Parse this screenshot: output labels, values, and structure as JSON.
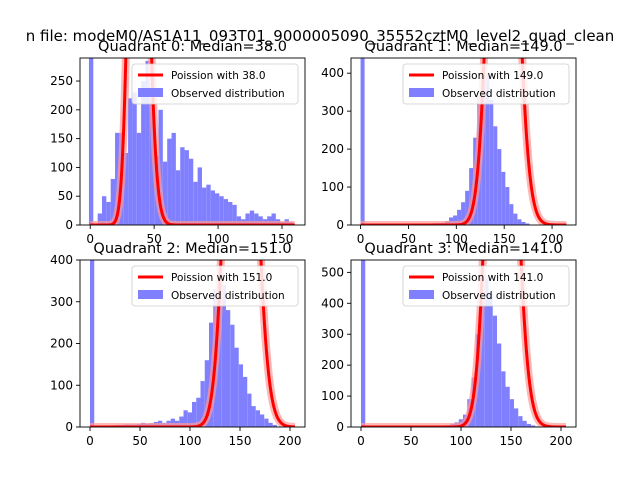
{
  "suptitle": "n file: modeM0/AS1A11_093T01_9000005090_35552cztM0_level2_quad_clean",
  "colors": {
    "fit": "#ff0000",
    "fit_halo": "#ff9999",
    "hist": "#8080ff"
  },
  "chart_data": [
    {
      "type": "bar+line",
      "title": "Quadrant 0: Median=38.0",
      "median": 38.0,
      "xlim": [
        -8,
        168
      ],
      "ylim": [
        0,
        290
      ],
      "xticks": [
        0,
        50,
        100,
        150
      ],
      "yticks": [
        0,
        50,
        100,
        150,
        200,
        250
      ],
      "legend": [
        "Poission with 38.0",
        "Observed distribution"
      ],
      "hist": {
        "start": -1,
        "width": 3.4,
        "values": [
          290,
          0,
          20,
          50,
          40,
          80,
          160,
          160,
          125,
          220,
          230,
          160,
          250,
          285,
          240,
          120,
          200,
          110,
          150,
          160,
          95,
          135,
          130,
          115,
          75,
          100,
          65,
          70,
          60,
          55,
          50,
          45,
          40,
          35,
          15,
          10,
          20,
          25,
          20,
          15,
          10,
          15,
          20,
          10,
          5,
          10,
          5
        ]
      },
      "fit": {
        "mu": 38.0,
        "scale": 17150,
        "x_max": 160
      }
    },
    {
      "type": "bar+line",
      "title": "Quadrant 1: Median=149.0",
      "median": 149.0,
      "xlim": [
        -10,
        225
      ],
      "ylim": [
        0,
        440
      ],
      "xticks": [
        0,
        50,
        100,
        150,
        200
      ],
      "yticks": [
        0,
        100,
        200,
        300,
        400
      ],
      "legend": [
        "Poission with 149.0",
        "Observed distribution"
      ],
      "hist": {
        "start": 0,
        "width": 4.2,
        "values": [
          440,
          0,
          0,
          0,
          0,
          0,
          0,
          0,
          0,
          0,
          0,
          0,
          2,
          2,
          3,
          3,
          3,
          4,
          5,
          5,
          6,
          10,
          20,
          25,
          40,
          60,
          90,
          150,
          230,
          340,
          410,
          400,
          330,
          260,
          200,
          140,
          100,
          55,
          30,
          15,
          8,
          4
        ]
      },
      "fit": {
        "mu": 149.0,
        "scale": 51100,
        "x_max": 215
      }
    },
    {
      "type": "bar+line",
      "title": "Quadrant 2: Median=151.0",
      "median": 151.0,
      "xlim": [
        -10,
        215
      ],
      "ylim": [
        0,
        400
      ],
      "xticks": [
        0,
        50,
        100,
        150,
        200
      ],
      "yticks": [
        0,
        100,
        200,
        300,
        400
      ],
      "legend": [
        "Poission with 151.0",
        "Observed distribution"
      ],
      "hist": {
        "start": 0,
        "width": 4.25,
        "values": [
          400,
          0,
          0,
          3,
          3,
          4,
          5,
          5,
          6,
          6,
          6,
          7,
          10,
          8,
          9,
          12,
          15,
          10,
          15,
          20,
          15,
          25,
          40,
          35,
          60,
          70,
          110,
          160,
          250,
          330,
          380,
          340,
          280,
          245,
          190,
          150,
          120,
          80,
          50,
          40,
          30,
          20,
          10,
          5
        ]
      },
      "fit": {
        "mu": 151.0,
        "scale": 46500,
        "x_max": 205
      }
    },
    {
      "type": "bar+line",
      "title": "Quadrant 3: Median=141.0",
      "median": 141.0,
      "xlim": [
        -10,
        215
      ],
      "ylim": [
        0,
        540
      ],
      "xticks": [
        0,
        50,
        100,
        150,
        200
      ],
      "yticks": [
        0,
        100,
        200,
        300,
        400,
        500
      ],
      "legend": [
        "Poission with 141.0",
        "Observed distribution"
      ],
      "hist": {
        "start": 0,
        "width": 4.25,
        "values": [
          540,
          0,
          0,
          0,
          0,
          0,
          0,
          0,
          0,
          0,
          0,
          0,
          0,
          0,
          0,
          2,
          3,
          3,
          4,
          5,
          6,
          10,
          15,
          25,
          40,
          90,
          160,
          300,
          420,
          480,
          430,
          360,
          270,
          180,
          130,
          90,
          60,
          35,
          20,
          10,
          5,
          2
        ]
      },
      "fit": {
        "mu": 141.0,
        "scale": 59000,
        "x_max": 205
      }
    }
  ]
}
